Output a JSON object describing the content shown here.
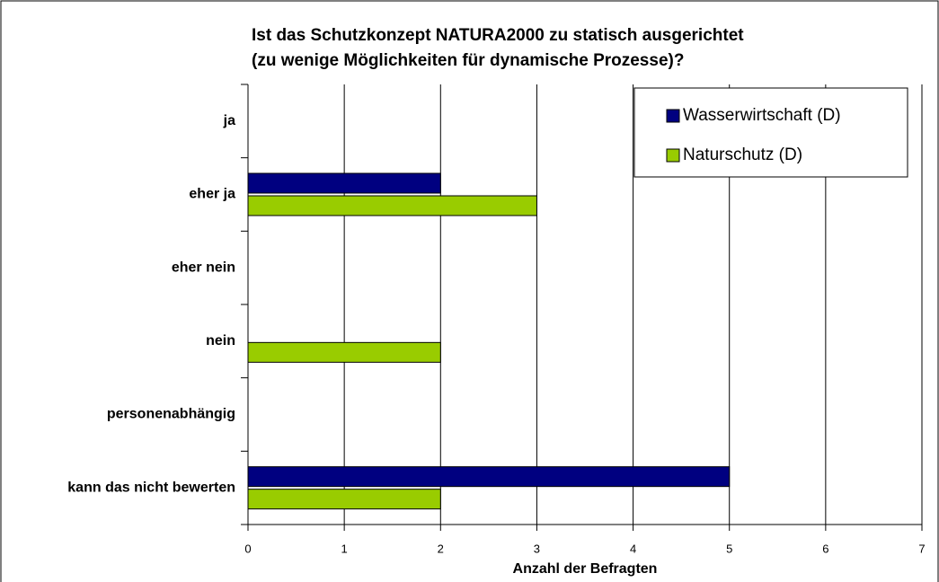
{
  "chart_data": {
    "type": "barh",
    "title": [
      "Ist das Schutzkonzept NATURA2000 zu statisch ausgerichtet",
      "(zu wenige Möglichkeiten für dynamische Prozesse)?"
    ],
    "x_label": "Anzahl der Befragten",
    "categories": [
      "ja",
      "eher ja",
      "eher nein",
      "nein",
      "personenabhängig",
      "kann das nicht bewerten"
    ],
    "series": [
      {
        "name": "Wasserwirtschaft (D)",
        "color": "#000080",
        "values": [
          0,
          2,
          0,
          0,
          0,
          5
        ]
      },
      {
        "name": "Naturschutz (D)",
        "color": "#99cc00",
        "values": [
          0,
          3,
          0,
          2,
          0,
          2
        ]
      }
    ],
    "xlim": [
      0,
      7
    ],
    "xticks": [
      0,
      1,
      2,
      3,
      4,
      5,
      6,
      7
    ],
    "grid": true,
    "legend": "top-right"
  }
}
